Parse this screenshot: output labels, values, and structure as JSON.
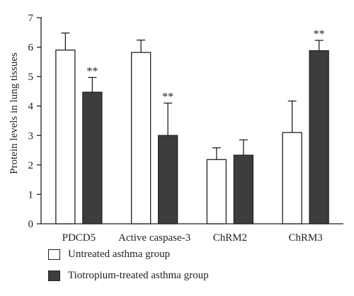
{
  "chart_data": {
    "type": "bar",
    "ylabel": "Protein levels in lung tissues",
    "xlabel": "",
    "ylim": [
      0,
      7
    ],
    "yticks": [
      "0",
      "1",
      "2",
      "3",
      "4",
      "5",
      "6",
      "7"
    ],
    "categories": [
      "PDCD5",
      "Active caspase-3",
      "ChRM2",
      "ChRM3"
    ],
    "series": [
      {
        "name": "Untreated asthma group",
        "color": "#ffffff",
        "values": [
          5.9,
          5.82,
          2.18,
          3.1
        ],
        "errors": [
          0.58,
          0.42,
          0.4,
          1.07
        ],
        "significance": [
          "",
          "",
          "",
          ""
        ]
      },
      {
        "name": "Tiotropium-treated asthma group",
        "color": "#3d3d3d",
        "values": [
          4.47,
          3.0,
          2.33,
          5.88
        ],
        "errors": [
          0.5,
          1.1,
          0.52,
          0.35
        ],
        "significance": [
          "**",
          "**",
          "",
          "**"
        ]
      }
    ]
  }
}
